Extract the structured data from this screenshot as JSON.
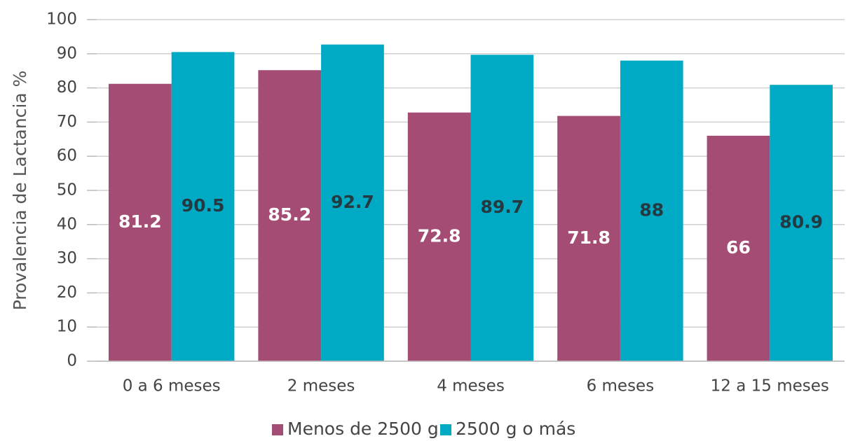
{
  "chart_data": {
    "type": "bar",
    "ylabel": "Provalencia de Lactancia %",
    "categories": [
      "0 a 6 meses",
      "2 meses",
      "4 meses",
      "6 meses",
      "12 a 15 meses"
    ],
    "series": [
      {
        "name": "Menos de 2500 g",
        "color": "#a44c74",
        "label_color": "#ffffff",
        "values": [
          81.2,
          85.2,
          72.8,
          71.8,
          66
        ]
      },
      {
        "name": "2500 g o más",
        "color": "#00a9c4",
        "label_color": "#243a40",
        "values": [
          90.5,
          92.7,
          89.7,
          88,
          80.9
        ]
      }
    ],
    "ylim": [
      0,
      100
    ],
    "yticks": [
      0,
      10,
      20,
      30,
      40,
      50,
      60,
      70,
      80,
      90,
      100
    ],
    "grid": true,
    "legend": "bottom"
  }
}
